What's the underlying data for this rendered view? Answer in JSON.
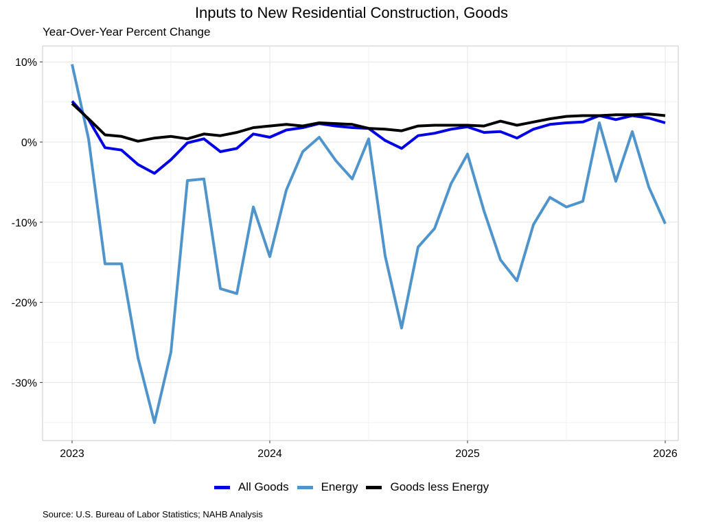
{
  "chart_data": {
    "type": "line",
    "title": "Inputs to New Residential Construction, Goods",
    "subtitle": "Year-Over-Year Percent Change",
    "xlabel": "",
    "ylabel": "",
    "source": "Source: U.S. Bureau of Labor Statistics; NAHB Analysis",
    "x_start": "2023-01",
    "x_frequency": "monthly",
    "x_ticks": [
      "2023",
      "2024",
      "2025",
      "2026"
    ],
    "y_ticks": [
      10,
      0,
      -10,
      -20,
      -30
    ],
    "y_tick_labels": [
      "10%",
      "0%",
      "-10%",
      "-20%",
      "-30%"
    ],
    "ylim": [
      -37,
      12
    ],
    "grid": true,
    "legend_position": "bottom",
    "series": [
      {
        "name": "All Goods",
        "color": "#0000e6",
        "values": [
          5.1,
          2.8,
          -0.7,
          -1.0,
          -2.8,
          -3.9,
          -2.2,
          -0.1,
          0.4,
          -1.2,
          -0.8,
          1.0,
          0.6,
          1.5,
          1.8,
          2.3,
          2.0,
          1.8,
          1.7,
          0.2,
          -0.8,
          0.8,
          1.1,
          1.6,
          1.9,
          1.2,
          1.3,
          0.5,
          1.6,
          2.2,
          2.4,
          2.5,
          3.3,
          2.8,
          3.3,
          3.0,
          2.4
        ]
      },
      {
        "name": "Energy",
        "color": "#4f95cc",
        "values": [
          9.7,
          0.4,
          -15.2,
          -15.2,
          -26.9,
          -35.0,
          -26.2,
          -4.8,
          -4.6,
          -18.3,
          -18.9,
          -8.1,
          -14.3,
          -6.0,
          -1.2,
          0.6,
          -2.3,
          -4.6,
          0.4,
          -14.2,
          -23.2,
          -13.1,
          -10.8,
          -5.2,
          -1.5,
          -8.6,
          -14.7,
          -17.3,
          -10.3,
          -6.9,
          -8.1,
          -7.4,
          2.4,
          -4.9,
          1.3,
          -5.6,
          -10.2
        ]
      },
      {
        "name": "Goods less Energy",
        "color": "#000000",
        "values": [
          4.8,
          2.9,
          0.9,
          0.7,
          0.1,
          0.5,
          0.7,
          0.4,
          1.0,
          0.8,
          1.2,
          1.8,
          2.0,
          2.2,
          2.0,
          2.4,
          2.3,
          2.2,
          1.7,
          1.6,
          1.4,
          2.0,
          2.1,
          2.1,
          2.1,
          2.0,
          2.6,
          2.1,
          2.5,
          2.9,
          3.2,
          3.3,
          3.3,
          3.4,
          3.4,
          3.5,
          3.3
        ]
      }
    ]
  }
}
